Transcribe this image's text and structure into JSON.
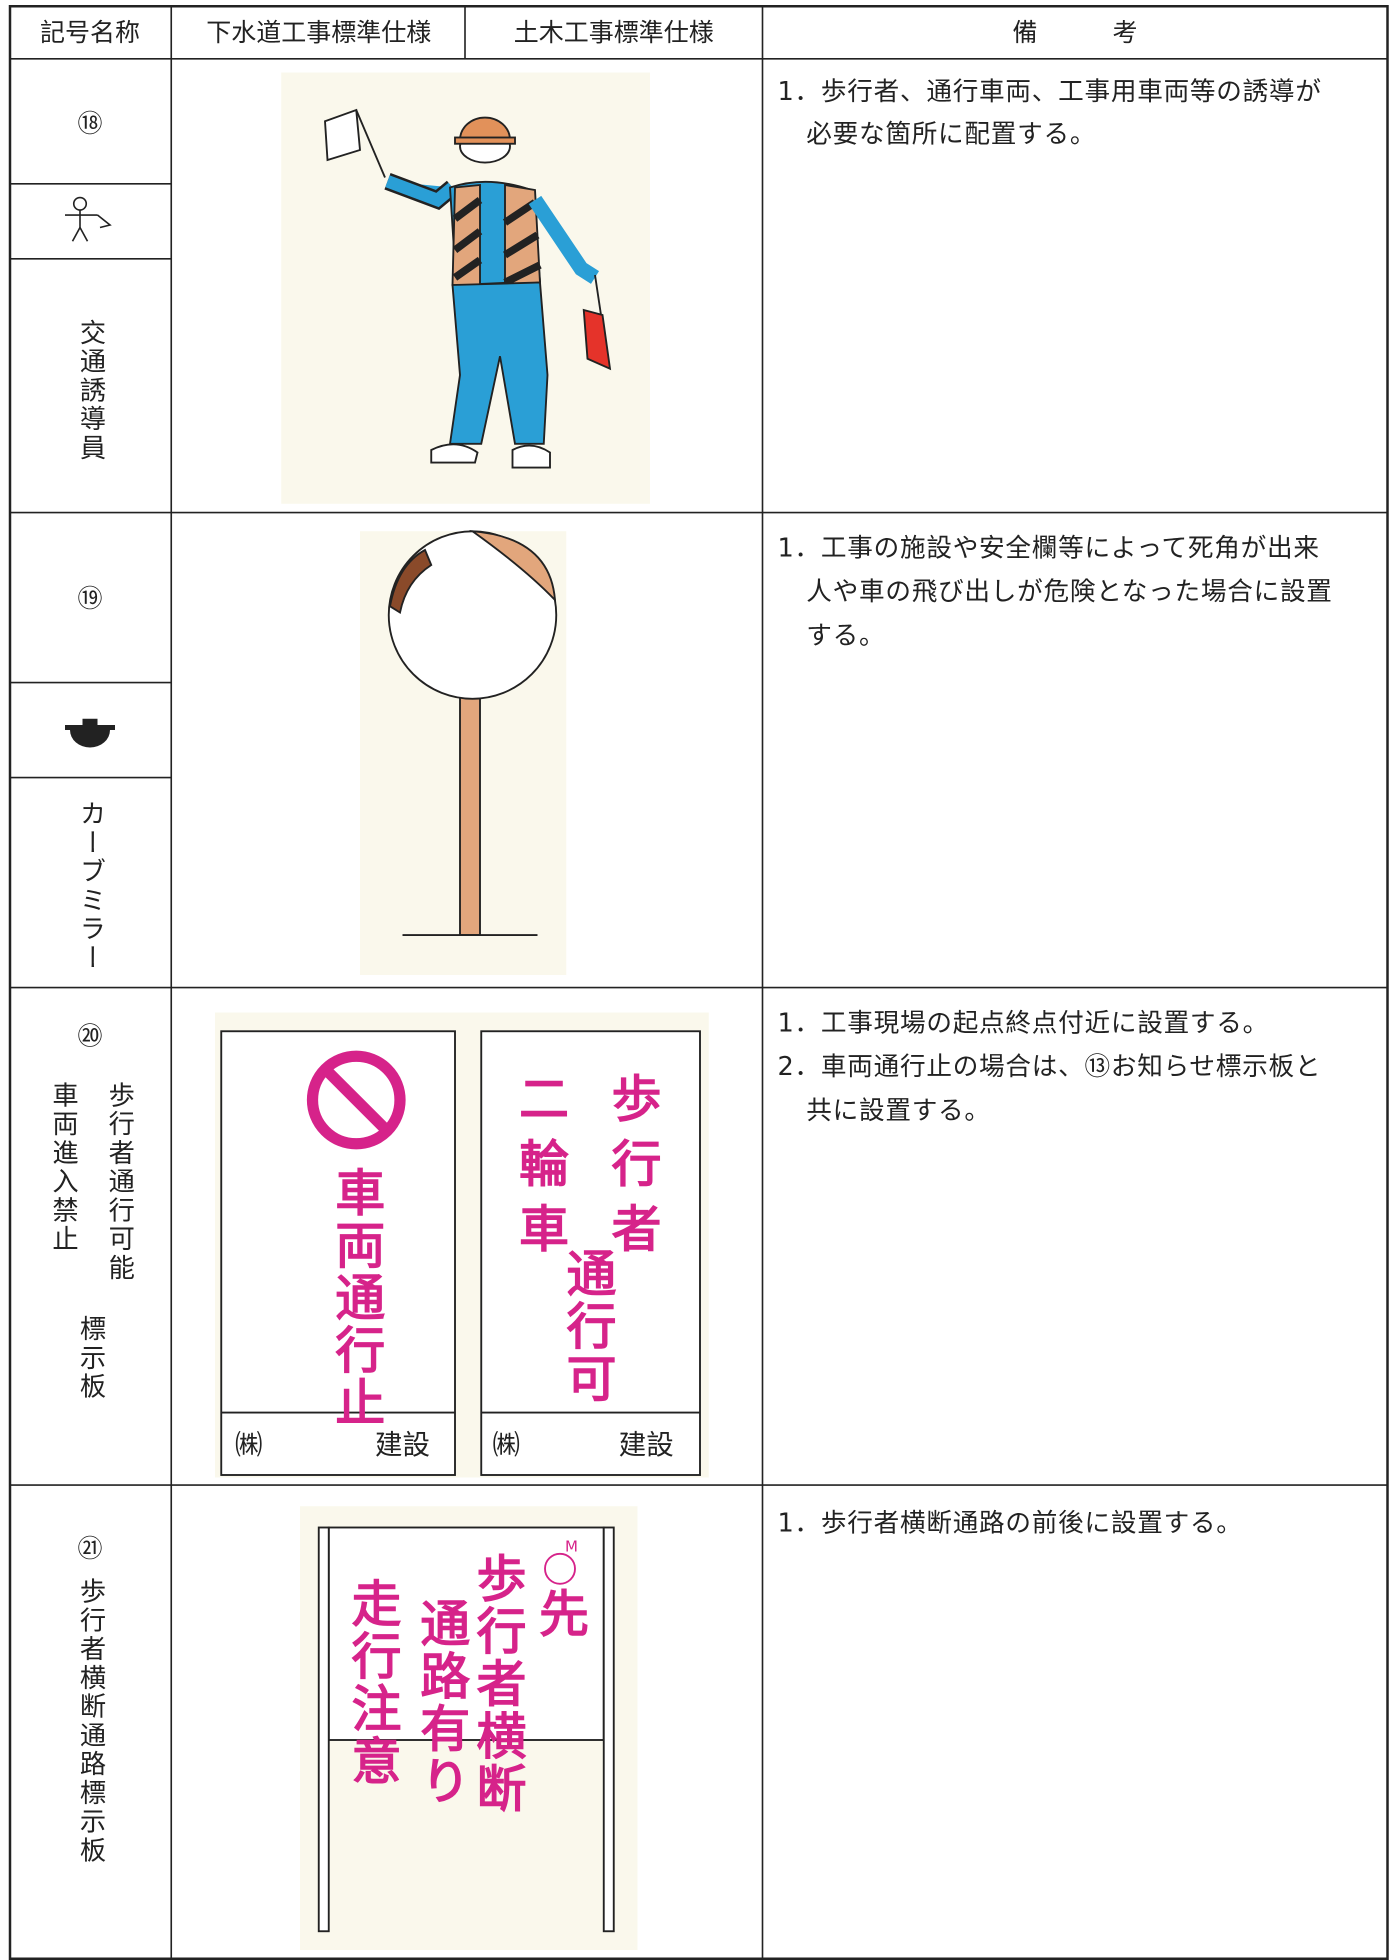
{
  "header": {
    "columns": [
      "記号名称",
      "下水道工事標準仕様",
      "土木工事標準仕様",
      "備　　　考"
    ]
  },
  "rows": [
    {
      "number": "⑱",
      "name": [
        "交通誘導員"
      ],
      "remarks": [
        "1．歩行者、通行車両、工事用車両等の誘導が",
        "必要な箇所に配置する。"
      ]
    },
    {
      "number": "⑲",
      "name": [
        "カーブミラー"
      ],
      "remarks": [
        "1．工事の施設や安全欄等によって死角が出来",
        "人や車の飛び出しが危険となった場合に設置",
        "する。"
      ]
    },
    {
      "number": "⑳",
      "name": [
        "歩行者通行可能",
        "車両進入禁止",
        "標示板"
      ],
      "remarks": [
        "1．工事現場の起点終点付近に設置する。",
        "2．車両通行止の場合は、⑬お知らせ標示板と",
        "共に設置する。"
      ],
      "illustration": {
        "left": {
          "text": "車両通行止",
          "company": "㈱",
          "builder": "建設"
        },
        "right": {
          "text": [
            "二輪車",
            "歩行者",
            "通行可"
          ],
          "company": "㈱",
          "builder": "建設"
        }
      }
    },
    {
      "number": "㉑",
      "name": [
        "歩行者横断通路標示板"
      ],
      "remarks": [
        "1．歩行者横断通路の前後に設置する。"
      ],
      "illustration": {
        "mark": "M",
        "text": [
          "先",
          "歩行者横断",
          "通路有り",
          "走行注意"
        ]
      }
    }
  ]
}
